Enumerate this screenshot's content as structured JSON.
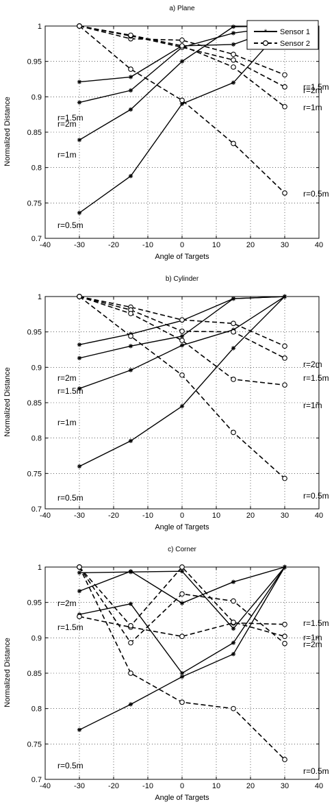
{
  "charts": [
    {
      "title": "a)  Plane",
      "xlabel": "Angle of Targets",
      "ylabel": "Normalized Distance",
      "legend": [
        "Sensor 1",
        "Sensor 2"
      ],
      "series_labels_left": [
        "r=2m",
        "r=1.5m",
        "r=1m",
        "r=0.5m"
      ],
      "series_labels_right": [
        "r=2m",
        "r=1.5m",
        "r=1m",
        "r=0.5m"
      ]
    },
    {
      "title": "b)  Cylinder",
      "xlabel": "Angle of Targets",
      "ylabel": "Normalized Distance",
      "series_labels_left": [
        "r=2m",
        "r=1.5m",
        "r=1m",
        "r=0.5m"
      ],
      "series_labels_right": [
        "r=2m",
        "r=1.5m",
        "r=1m",
        "r=0.5m"
      ]
    },
    {
      "title": "c)  Corner",
      "xlabel": "Angle of Targets",
      "ylabel": "Normalized Distance",
      "series_labels_left": [
        "r=2m",
        "r=1.5m",
        "r=0.5m"
      ],
      "series_labels_right": [
        "r=1.5m",
        "r=1m",
        "r=2m",
        "r=0.5m"
      ]
    }
  ],
  "chart_data": [
    {
      "type": "line",
      "title": "a)  Plane",
      "xlabel": "Angle of Targets",
      "ylabel": "Normalized Distance",
      "xlim": [
        -40,
        40
      ],
      "ylim": [
        0.7,
        1.0
      ],
      "xticks": [
        -40,
        -30,
        -20,
        -10,
        0,
        10,
        20,
        30,
        40
      ],
      "yticks": [
        0.7,
        0.75,
        0.8,
        0.85,
        0.9,
        0.95,
        1
      ],
      "grid": true,
      "legend_position": "top-right",
      "x": [
        -30,
        -15,
        0,
        15,
        30
      ],
      "series": [
        {
          "name": "Sensor 1",
          "group": "sensor1",
          "r": "2m",
          "values": [
            0.921,
            0.928,
            0.972,
            0.974,
            1.0
          ]
        },
        {
          "name": "Sensor 1",
          "group": "sensor1",
          "r": "1.5m",
          "values": [
            0.892,
            0.909,
            0.97,
            0.99,
            1.0
          ]
        },
        {
          "name": "Sensor 1",
          "group": "sensor1",
          "r": "1m",
          "values": [
            0.839,
            0.882,
            0.95,
            0.999,
            1.0
          ]
        },
        {
          "name": "Sensor 1",
          "group": "sensor1",
          "r": "0.5m",
          "values": [
            0.736,
            0.788,
            0.89,
            0.92,
            1.0
          ]
        },
        {
          "name": "Sensor 2",
          "group": "sensor2",
          "r": "2m",
          "values": [
            1.0,
            0.982,
            0.98,
            0.96,
            0.931
          ]
        },
        {
          "name": "Sensor 2",
          "group": "sensor2",
          "r": "1.5m",
          "values": [
            1.0,
            0.986,
            0.97,
            0.952,
            0.914
          ]
        },
        {
          "name": "Sensor 2",
          "group": "sensor2",
          "r": "1m",
          "values": [
            1.0,
            0.987,
            0.972,
            0.942,
            0.886
          ]
        },
        {
          "name": "Sensor 2",
          "group": "sensor2",
          "r": "0.5m",
          "values": [
            1.0,
            0.939,
            0.895,
            0.834,
            0.764
          ]
        }
      ]
    },
    {
      "type": "line",
      "title": "b)  Cylinder",
      "xlabel": "Angle of Targets",
      "ylabel": "Normalized Distance",
      "xlim": [
        -40,
        40
      ],
      "ylim": [
        0.7,
        1.0
      ],
      "xticks": [
        -40,
        -30,
        -20,
        -10,
        0,
        10,
        20,
        30,
        40
      ],
      "yticks": [
        0.7,
        0.75,
        0.8,
        0.85,
        0.9,
        0.95,
        1
      ],
      "grid": true,
      "x": [
        -30,
        -15,
        0,
        15,
        30
      ],
      "series": [
        {
          "name": "Sensor 1",
          "group": "sensor1",
          "r": "2m",
          "values": [
            0.932,
            0.947,
            0.966,
            0.997,
            1.0
          ]
        },
        {
          "name": "Sensor 1",
          "group": "sensor1",
          "r": "1.5m",
          "values": [
            0.913,
            0.93,
            0.944,
            0.997,
            1.0
          ]
        },
        {
          "name": "Sensor 1",
          "group": "sensor1",
          "r": "1m",
          "values": [
            0.87,
            0.896,
            0.931,
            0.953,
            1.0
          ]
        },
        {
          "name": "Sensor 1",
          "group": "sensor1",
          "r": "0.5m",
          "values": [
            0.76,
            0.796,
            0.845,
            0.927,
            1.0
          ]
        },
        {
          "name": "Sensor 2",
          "group": "sensor2",
          "r": "2m",
          "values": [
            1.0,
            0.985,
            0.967,
            0.962,
            0.93
          ]
        },
        {
          "name": "Sensor 2",
          "group": "sensor2",
          "r": "1.5m",
          "values": [
            1.0,
            0.981,
            0.951,
            0.95,
            0.913
          ]
        },
        {
          "name": "Sensor 2",
          "group": "sensor2",
          "r": "1m",
          "values": [
            1.0,
            0.976,
            0.938,
            0.883,
            0.875
          ]
        },
        {
          "name": "Sensor 2",
          "group": "sensor2",
          "r": "0.5m",
          "values": [
            1.0,
            0.944,
            0.889,
            0.808,
            0.743
          ]
        }
      ]
    },
    {
      "type": "line",
      "title": "c)  Corner",
      "xlabel": "Angle of Targets",
      "ylabel": "Normalized Distance",
      "xlim": [
        -40,
        40
      ],
      "ylim": [
        0.7,
        1.0
      ],
      "xticks": [
        -40,
        -30,
        -20,
        -10,
        0,
        10,
        20,
        30,
        40
      ],
      "yticks": [
        0.7,
        0.75,
        0.8,
        0.85,
        0.9,
        0.95,
        1
      ],
      "grid": true,
      "x": [
        -30,
        -15,
        0,
        15,
        30
      ],
      "series": [
        {
          "name": "Sensor 1",
          "group": "sensor1",
          "r": "2m",
          "values": [
            0.966,
            0.994,
            0.949,
            0.979,
            1.0
          ]
        },
        {
          "name": "Sensor 1",
          "group": "sensor1",
          "r": "1.5m",
          "values": [
            0.933,
            0.948,
            0.85,
            0.893,
            1.0
          ]
        },
        {
          "name": "Sensor 1",
          "group": "sensor1",
          "r": "1m",
          "values": [
            0.992,
            0.993,
            0.994,
            0.913,
            1.0
          ]
        },
        {
          "name": "Sensor 1",
          "group": "sensor1",
          "r": "0.5m",
          "values": [
            0.77,
            0.806,
            0.845,
            0.877,
            1.0
          ]
        },
        {
          "name": "Sensor 2",
          "group": "sensor2",
          "r": "2m",
          "values": [
            1.0,
            0.893,
            0.962,
            0.952,
            0.892
          ]
        },
        {
          "name": "Sensor 2",
          "group": "sensor2",
          "r": "1.5m",
          "values": [
            0.93,
            0.915,
            0.902,
            0.921,
            0.919
          ]
        },
        {
          "name": "Sensor 2",
          "group": "sensor2",
          "r": "1m",
          "values": [
            1.0,
            0.917,
            1.0,
            0.922,
            0.902
          ]
        },
        {
          "name": "Sensor 2",
          "group": "sensor2",
          "r": "0.5m",
          "values": [
            1.0,
            0.85,
            0.809,
            0.8,
            0.728
          ]
        }
      ]
    }
  ]
}
